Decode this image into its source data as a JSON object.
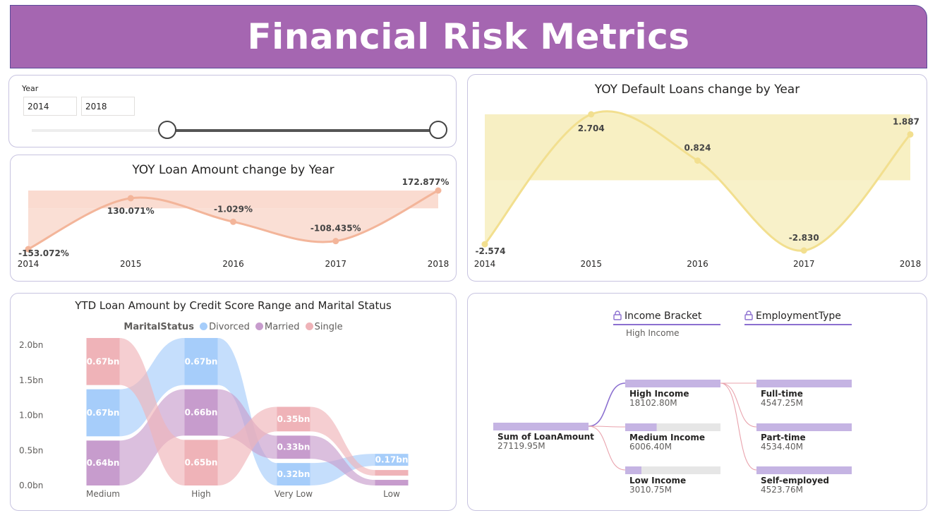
{
  "header": {
    "title": "Financial Risk Metrics"
  },
  "slicer": {
    "label": "Year",
    "start": "2014",
    "end": "2018",
    "range_min": 2012,
    "range_max": 2018
  },
  "colors": {
    "loan_line": "#f3b59a",
    "loan_area": "#fadbd0",
    "default_line": "#f2df8f",
    "default_area": "#f7efc3",
    "divorced": "#a6cdfa",
    "married": "#c79ccd",
    "single": "#efb3b8",
    "tree_bar": "#c5b4e3"
  },
  "loan_chart": {
    "chart_data": {
      "type": "area",
      "title": "YOY Loan Amount change by Year",
      "x": [
        "2014",
        "2015",
        "2016",
        "2017",
        "2018"
      ],
      "values": [
        -153.072,
        130.071,
        -1.029,
        -108.435,
        172.877
      ],
      "labels": [
        "-153.072%",
        "130.071%",
        "-1.029%",
        "-108.435%",
        "172.877%"
      ]
    }
  },
  "default_chart": {
    "chart_data": {
      "type": "area",
      "title": "YOY Default Loans change by Year",
      "x": [
        "2014",
        "2015",
        "2016",
        "2017",
        "2018"
      ],
      "values": [
        -2.574,
        2.704,
        0.824,
        -2.83,
        1.887
      ],
      "labels": [
        "-2.574",
        "2.704",
        "0.824",
        "-2.830",
        "1.887"
      ]
    }
  },
  "ribbon_chart": {
    "chart_data": {
      "type": "bar",
      "title": "YTD Loan Amount by Credit Score Range and Marital Status",
      "legend_title": "MaritalStatus",
      "categories": [
        "Medium",
        "High",
        "Very Low",
        "Low"
      ],
      "y_ticks": [
        "2.0bn",
        "1.5bn",
        "1.0bn",
        "0.5bn",
        "0.0bn"
      ],
      "ylim": [
        0,
        2
      ],
      "series": [
        {
          "name": "Divorced",
          "values": [
            0.67,
            0.67,
            0.32,
            0.17
          ],
          "labels": [
            "0.67bn",
            "0.67bn",
            "0.32bn",
            "0.17bn"
          ]
        },
        {
          "name": "Married",
          "values": [
            0.64,
            0.66,
            0.33,
            0.08
          ],
          "labels": [
            "0.64bn",
            "0.66bn",
            "0.33bn",
            ""
          ]
        },
        {
          "name": "Single",
          "values": [
            0.67,
            0.65,
            0.35,
            0.08
          ],
          "labels": [
            "0.67bn",
            "0.65bn",
            "0.35bn",
            ""
          ]
        }
      ]
    }
  },
  "decomp_tree": {
    "headers": [
      {
        "label": "Income Bracket",
        "sub": "High Income"
      },
      {
        "label": "EmploymentType",
        "sub": ""
      }
    ],
    "root": {
      "label": "Sum of LoanAmount",
      "value": "27119.95M",
      "fraction": 1.0
    },
    "level1": [
      {
        "label": "High Income",
        "value": "18102.80M",
        "fraction": 1.0
      },
      {
        "label": "Medium Income",
        "value": "6006.40M",
        "fraction": 0.33
      },
      {
        "label": "Low Income",
        "value": "3010.75M",
        "fraction": 0.17
      }
    ],
    "level2": [
      {
        "label": "Full-time",
        "value": "4547.25M",
        "fraction": 1.0
      },
      {
        "label": "Part-time",
        "value": "4534.40M",
        "fraction": 1.0
      },
      {
        "label": "Self-employed",
        "value": "4523.76M",
        "fraction": 1.0
      }
    ]
  }
}
